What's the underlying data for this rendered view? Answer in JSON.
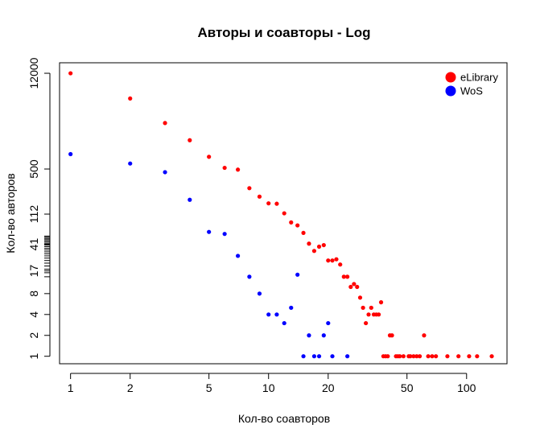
{
  "chart_data": {
    "type": "scatter",
    "title": "Авторы и соавторы - Log",
    "xlabel": "Кол-во соавторов",
    "ylabel": "Кол-во авторов",
    "x_scale": "log",
    "y_scale": "log",
    "xlim": [
      0.88,
      160
    ],
    "ylim": [
      0.78,
      17000
    ],
    "x_ticks": [
      1,
      2,
      5,
      10,
      20,
      50,
      100
    ],
    "y_ticks": [
      1,
      2,
      4,
      8,
      17,
      41,
      112,
      500,
      12000
    ],
    "y_minor_ticks": [
      14,
      16,
      18,
      20,
      22,
      24,
      26,
      28,
      30,
      32,
      34,
      36,
      38,
      40,
      42,
      44,
      46,
      48,
      50,
      52,
      54
    ],
    "grid": false,
    "legend_position": "top-right",
    "series": [
      {
        "name": "eLibrary",
        "color": "#ff0000",
        "points": [
          [
            1,
            12000
          ],
          [
            2,
            5200
          ],
          [
            3,
            2300
          ],
          [
            4,
            1300
          ],
          [
            5,
            750
          ],
          [
            6,
            520
          ],
          [
            7,
            490
          ],
          [
            8,
            265
          ],
          [
            9,
            200
          ],
          [
            10,
            160
          ],
          [
            11,
            158
          ],
          [
            12,
            115
          ],
          [
            13,
            85
          ],
          [
            14,
            77
          ],
          [
            15,
            60
          ],
          [
            16,
            42
          ],
          [
            17,
            33
          ],
          [
            18,
            38
          ],
          [
            19,
            40
          ],
          [
            20,
            24
          ],
          [
            21,
            24
          ],
          [
            22,
            25
          ],
          [
            23,
            21
          ],
          [
            24,
            14
          ],
          [
            25,
            14
          ],
          [
            26,
            10
          ],
          [
            27,
            11
          ],
          [
            28,
            10
          ],
          [
            29,
            7
          ],
          [
            30,
            5
          ],
          [
            31,
            3
          ],
          [
            32,
            4
          ],
          [
            33,
            5
          ],
          [
            34,
            4
          ],
          [
            35,
            4
          ],
          [
            36,
            4
          ],
          [
            37,
            6
          ],
          [
            38,
            1
          ],
          [
            39,
            1
          ],
          [
            40,
            1
          ],
          [
            41,
            2
          ],
          [
            42,
            2
          ],
          [
            44,
            1
          ],
          [
            45,
            1
          ],
          [
            46,
            1
          ],
          [
            48,
            1
          ],
          [
            51,
            1
          ],
          [
            52,
            1
          ],
          [
            54,
            1
          ],
          [
            56,
            1
          ],
          [
            58,
            1
          ],
          [
            61,
            2
          ],
          [
            64,
            1
          ],
          [
            67,
            1
          ],
          [
            70,
            1
          ],
          [
            80,
            1
          ],
          [
            91,
            1
          ],
          [
            103,
            1
          ],
          [
            113,
            1
          ],
          [
            134,
            1
          ]
        ]
      },
      {
        "name": "WoS",
        "color": "#0000ff",
        "points": [
          [
            1,
            820
          ],
          [
            2,
            600
          ],
          [
            3,
            450
          ],
          [
            4,
            180
          ],
          [
            5,
            62
          ],
          [
            6,
            58
          ],
          [
            7,
            28
          ],
          [
            8,
            14
          ],
          [
            9,
            8
          ],
          [
            10,
            4
          ],
          [
            11,
            4
          ],
          [
            12,
            3
          ],
          [
            13,
            5
          ],
          [
            14,
            15
          ],
          [
            15,
            1
          ],
          [
            16,
            2
          ],
          [
            17,
            1
          ],
          [
            18,
            1
          ],
          [
            19,
            2
          ],
          [
            20,
            3
          ],
          [
            21,
            1
          ],
          [
            25,
            1
          ]
        ]
      }
    ]
  }
}
